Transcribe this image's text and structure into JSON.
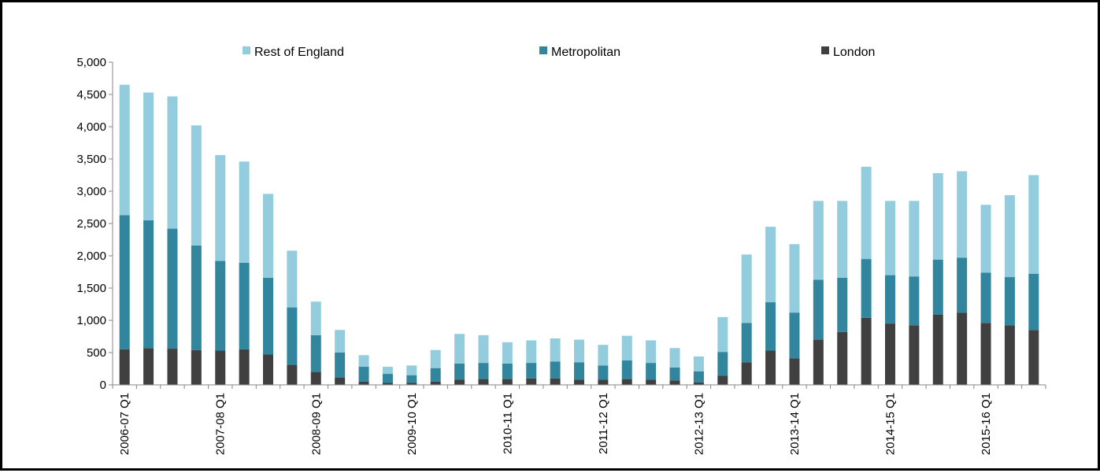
{
  "chart_data": {
    "type": "bar",
    "stacked": true,
    "title": "",
    "xlabel": "",
    "ylabel": "",
    "ylim": [
      0,
      5000
    ],
    "yticks": [
      0,
      500,
      1000,
      1500,
      2000,
      2500,
      3000,
      3500,
      4000,
      4500,
      5000
    ],
    "ytick_labels": [
      "0",
      "500",
      "1,000",
      "1,500",
      "2,000",
      "2,500",
      "3,000",
      "3,500",
      "4,000",
      "4,500",
      "5,000"
    ],
    "grid": false,
    "legend_position": "top",
    "categories": [
      "2006-07 Q1",
      "2006-07 Q2",
      "2006-07 Q3",
      "2006-07 Q4",
      "2007-08 Q1",
      "2007-08 Q2",
      "2007-08 Q3",
      "2007-08 Q4",
      "2008-09 Q1",
      "2008-09 Q2",
      "2008-09 Q3",
      "2008-09 Q4",
      "2009-10 Q1",
      "2009-10 Q2",
      "2009-10 Q3",
      "2009-10 Q4",
      "2010-11 Q1",
      "2010-11 Q2",
      "2010-11 Q3",
      "2010-11 Q4",
      "2011-12 Q1",
      "2011-12 Q2",
      "2011-12 Q3",
      "2011-12 Q4",
      "2012-13 Q1",
      "2012-13 Q2",
      "2012-13 Q3",
      "2012-13 Q4",
      "2013-14 Q1",
      "2013-14 Q2",
      "2013-14 Q3",
      "2013-14 Q4",
      "2014-15 Q1",
      "2014-15 Q2",
      "2014-15 Q3",
      "2014-15 Q4",
      "2015-16 Q1",
      "2015-16 Q2",
      "2015-16 Q3"
    ],
    "x_tick_labels": [
      {
        "index": 0,
        "label": "2006-07 Q1"
      },
      {
        "index": 4,
        "label": "2007-08 Q1"
      },
      {
        "index": 8,
        "label": "2008-09 Q1"
      },
      {
        "index": 12,
        "label": "2009-10 Q1"
      },
      {
        "index": 16,
        "label": "2010-11 Q1"
      },
      {
        "index": 20,
        "label": "2011-12 Q1"
      },
      {
        "index": 24,
        "label": "2012-13 Q1"
      },
      {
        "index": 28,
        "label": "2013-14 Q1"
      },
      {
        "index": 32,
        "label": "2014-15 Q1"
      },
      {
        "index": 36,
        "label": "2015-16 Q1"
      }
    ],
    "series": [
      {
        "name": "London",
        "color": "#404040",
        "values": [
          550,
          570,
          560,
          540,
          530,
          550,
          470,
          310,
          200,
          110,
          50,
          30,
          30,
          50,
          80,
          90,
          90,
          100,
          100,
          80,
          80,
          90,
          80,
          70,
          40,
          140,
          350,
          530,
          410,
          700,
          820,
          1040,
          950,
          920,
          1090,
          1120,
          960,
          920,
          850
        ]
      },
      {
        "name": "Metropolitan",
        "color": "#31859c",
        "values": [
          2080,
          1980,
          1860,
          1620,
          1390,
          1340,
          1190,
          890,
          570,
          390,
          230,
          140,
          120,
          210,
          250,
          250,
          240,
          240,
          260,
          270,
          220,
          290,
          260,
          200,
          170,
          370,
          610,
          750,
          710,
          930,
          840,
          910,
          750,
          760,
          850,
          850,
          780,
          750,
          870
        ]
      },
      {
        "name": "Rest of England",
        "color": "#93cddd",
        "values": [
          2020,
          1980,
          2050,
          1860,
          1640,
          1570,
          1300,
          880,
          520,
          350,
          180,
          110,
          150,
          280,
          460,
          430,
          330,
          350,
          360,
          350,
          320,
          380,
          350,
          300,
          230,
          540,
          1060,
          1170,
          1060,
          1220,
          1190,
          1430,
          1150,
          1170,
          1340,
          1340,
          1050,
          1270,
          1530
        ]
      }
    ],
    "legend": [
      {
        "label": "Rest of England",
        "color": "#93cddd"
      },
      {
        "label": "Metropolitan",
        "color": "#31859c"
      },
      {
        "label": "London",
        "color": "#404040"
      }
    ]
  }
}
